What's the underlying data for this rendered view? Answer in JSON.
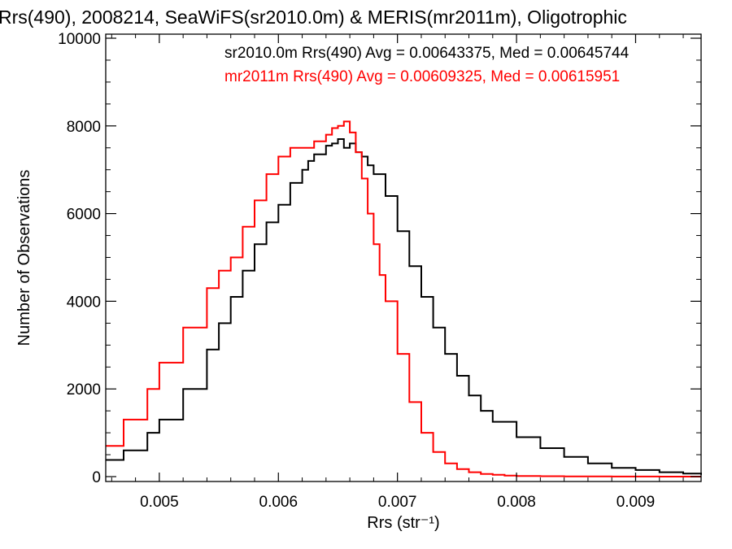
{
  "chart_data": {
    "type": "line",
    "title": "Rrs(490), 2008214, SeaWiFS(sr2010.0m) & MERIS(mr2011m), Oligotrophic",
    "xlabel": "Rrs (str⁻¹)",
    "ylabel": "Number of Observations",
    "xlim": [
      0.00455,
      0.00955
    ],
    "ylim": [
      0,
      10000
    ],
    "xticks": [
      0.005,
      0.006,
      0.007,
      0.008,
      0.009
    ],
    "xtick_labels": [
      "0.005",
      "0.006",
      "0.007",
      "0.008",
      "0.009"
    ],
    "yticks": [
      0,
      2000,
      4000,
      6000,
      8000,
      10000
    ],
    "ytick_labels": [
      "0",
      "2000",
      "4000",
      "6000",
      "8000",
      "10000"
    ],
    "grid": false,
    "legend_position": "top-right",
    "series": [
      {
        "name": "sr2010.0m Rrs(490) Avg = 0.00643375, Med = 0.00645744",
        "color": "#000000",
        "style": "step",
        "x": [
          0.00455,
          0.0047,
          0.0049,
          0.005,
          0.0052,
          0.0054,
          0.0055,
          0.0056,
          0.0057,
          0.0058,
          0.0059,
          0.006,
          0.0061,
          0.0062,
          0.00625,
          0.0063,
          0.0064,
          0.00645,
          0.0065,
          0.00655,
          0.0066,
          0.00665,
          0.0067,
          0.00675,
          0.0068,
          0.0069,
          0.007,
          0.0071,
          0.0072,
          0.0073,
          0.0074,
          0.0075,
          0.0076,
          0.0077,
          0.0078,
          0.008,
          0.0082,
          0.0084,
          0.0086,
          0.0088,
          0.009,
          0.0092,
          0.0094,
          0.00955
        ],
        "y": [
          380,
          600,
          1000,
          1300,
          2000,
          2900,
          3500,
          4100,
          4700,
          5300,
          5800,
          6200,
          6700,
          7000,
          7200,
          7350,
          7550,
          7600,
          7700,
          7500,
          7600,
          7400,
          7300,
          7100,
          6900,
          6400,
          5600,
          4800,
          4100,
          3400,
          2800,
          2300,
          1850,
          1500,
          1250,
          900,
          650,
          450,
          300,
          200,
          150,
          100,
          70,
          40
        ]
      },
      {
        "name": "mr2011m Rrs(490) Avg = 0.00609325, Med = 0.00615951",
        "color": "#ff0000",
        "style": "step",
        "x": [
          0.00455,
          0.0047,
          0.0049,
          0.005,
          0.0052,
          0.0054,
          0.0055,
          0.0056,
          0.0057,
          0.0058,
          0.0059,
          0.006,
          0.0061,
          0.0062,
          0.0063,
          0.0064,
          0.00645,
          0.0065,
          0.00655,
          0.0066,
          0.00665,
          0.0067,
          0.00675,
          0.0068,
          0.00685,
          0.0069,
          0.007,
          0.0071,
          0.0072,
          0.0073,
          0.0074,
          0.0075,
          0.0076,
          0.0077,
          0.0078,
          0.0079,
          0.008,
          0.0082,
          0.0084,
          0.0086,
          0.0088,
          0.009,
          0.0092,
          0.0094,
          0.00955
        ],
        "y": [
          700,
          1300,
          2000,
          2600,
          3400,
          4300,
          4700,
          5000,
          5700,
          6300,
          6900,
          7300,
          7500,
          7500,
          7650,
          7800,
          7950,
          8000,
          8100,
          7850,
          7400,
          6800,
          6000,
          5300,
          4600,
          4000,
          2800,
          1700,
          1000,
          560,
          300,
          170,
          100,
          60,
          40,
          25,
          15,
          10,
          5,
          3,
          2,
          1,
          0,
          0,
          0
        ]
      }
    ]
  }
}
